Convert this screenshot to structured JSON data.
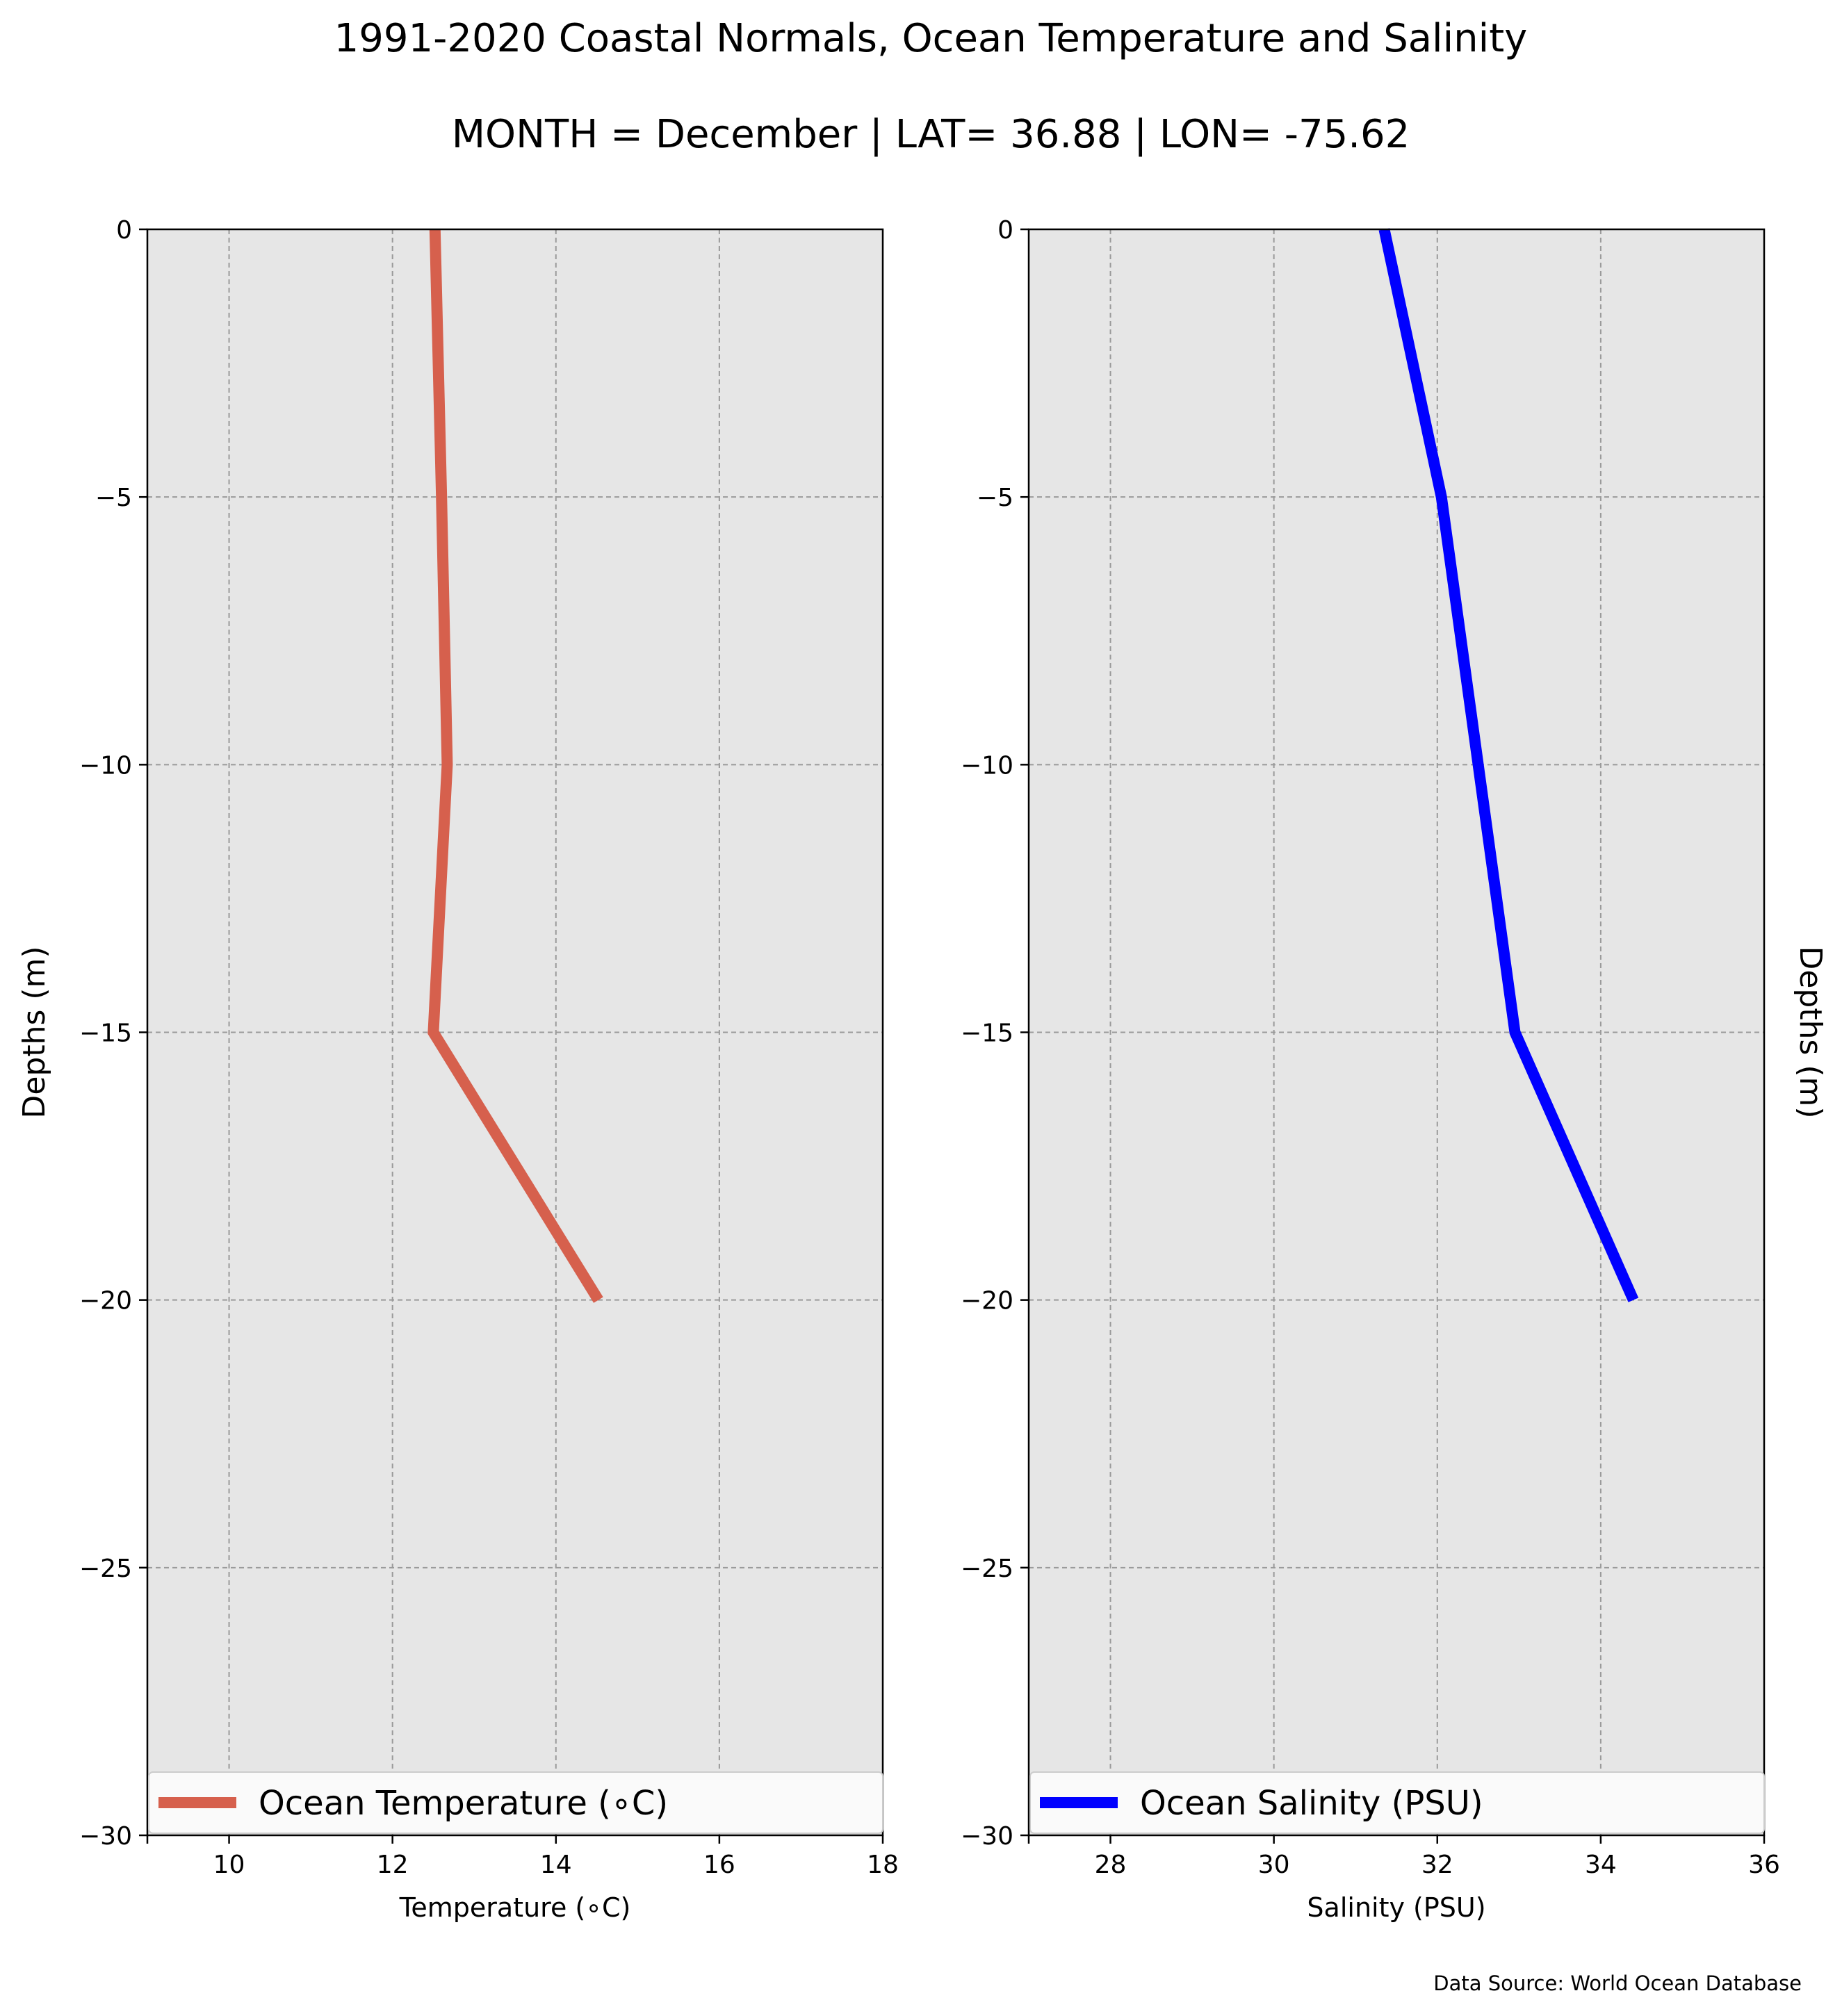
{
  "figure": {
    "title": "1991-2020 Coastal Normals, Ocean Temperature and Salinity",
    "subtitle": "MONTH = December | LAT= 36.88 | LON= -75.62",
    "source": "Data Source: World Ocean Database",
    "panel_background": "#e6e6e6"
  },
  "chart_data": [
    {
      "type": "line",
      "xlabel": "Temperature (∘C)",
      "ylabel": "Depths (m)",
      "xlim": [
        9,
        18
      ],
      "ylim": [
        -30,
        0
      ],
      "xticks": [
        10,
        12,
        14,
        16,
        18
      ],
      "xtick_labels": [
        "10",
        "12",
        "14",
        "16",
        "18"
      ],
      "yticks": [
        0,
        -5,
        -10,
        -15,
        -20,
        -25,
        -30
      ],
      "ytick_labels": [
        "0",
        "−5",
        "−10",
        "−15",
        "−20",
        "−25",
        "−30"
      ],
      "grid": true,
      "legend_position": "bottom",
      "series": [
        {
          "name": "Ocean Temperature (∘C)",
          "color": "#d6604d",
          "x": [
            12.52,
            12.6,
            12.67,
            12.5,
            14.52
          ],
          "y": [
            0,
            -5,
            -10,
            -15,
            -20
          ]
        }
      ]
    },
    {
      "type": "line",
      "xlabel": "Salinity (PSU)",
      "ylabel": "Depths (m)",
      "xlim": [
        27,
        36
      ],
      "ylim": [
        -30,
        0
      ],
      "xticks": [
        28,
        30,
        32,
        34,
        36
      ],
      "xtick_labels": [
        "28",
        "30",
        "32",
        "34",
        "36"
      ],
      "yticks": [
        0,
        -5,
        -10,
        -15,
        -20,
        -25,
        -30
      ],
      "ytick_labels": [
        "0",
        "−5",
        "−10",
        "−15",
        "−20",
        "−25",
        "−30"
      ],
      "grid": true,
      "legend_position": "bottom",
      "series": [
        {
          "name": "Ocean Salinity (PSU)",
          "color": "#0000ff",
          "x": [
            31.35,
            32.05,
            32.5,
            32.95,
            34.4
          ],
          "y": [
            0,
            -5,
            -10,
            -15,
            -20
          ]
        }
      ]
    }
  ]
}
